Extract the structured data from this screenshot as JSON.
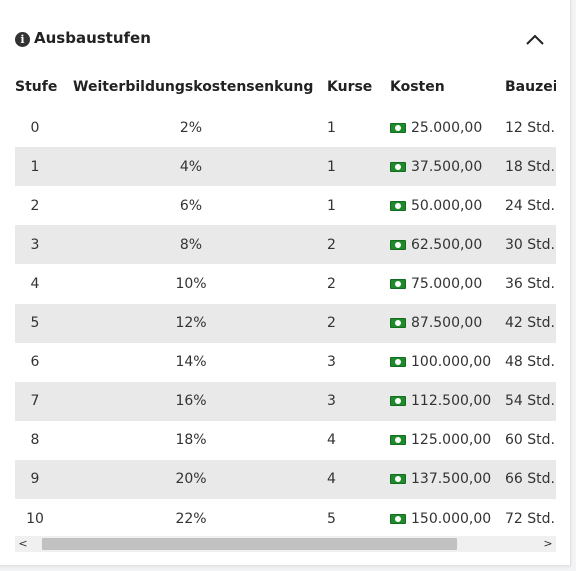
{
  "section": {
    "title": "Ausbaustufen",
    "info_icon": "i",
    "collapse_icon": "chevron-up-icon"
  },
  "table": {
    "headers": {
      "stufe": "Stufe",
      "pct": "Weiterbildungskostensenkung",
      "kurse": "Kurse",
      "kosten": "Kosten",
      "bau": "Bauzei"
    },
    "rows": [
      {
        "stufe": "0",
        "pct": "2%",
        "kurse": "1",
        "kosten": "25.000,00",
        "bau": "12 Std."
      },
      {
        "stufe": "1",
        "pct": "4%",
        "kurse": "1",
        "kosten": "37.500,00",
        "bau": "18 Std."
      },
      {
        "stufe": "2",
        "pct": "6%",
        "kurse": "1",
        "kosten": "50.000,00",
        "bau": "24 Std."
      },
      {
        "stufe": "3",
        "pct": "8%",
        "kurse": "2",
        "kosten": "62.500,00",
        "bau": "30 Std."
      },
      {
        "stufe": "4",
        "pct": "10%",
        "kurse": "2",
        "kosten": "75.000,00",
        "bau": "36 Std."
      },
      {
        "stufe": "5",
        "pct": "12%",
        "kurse": "2",
        "kosten": "87.500,00",
        "bau": "42 Std."
      },
      {
        "stufe": "6",
        "pct": "14%",
        "kurse": "3",
        "kosten": "100.000,00",
        "bau": "48 Std."
      },
      {
        "stufe": "7",
        "pct": "16%",
        "kurse": "3",
        "kosten": "112.500,00",
        "bau": "54 Std."
      },
      {
        "stufe": "8",
        "pct": "18%",
        "kurse": "4",
        "kosten": "125.000,00",
        "bau": "60 Std."
      },
      {
        "stufe": "9",
        "pct": "20%",
        "kurse": "4",
        "kosten": "137.500,00",
        "bau": "66 Std."
      },
      {
        "stufe": "10",
        "pct": "22%",
        "kurse": "5",
        "kosten": "150.000,00",
        "bau": "72 Std."
      }
    ],
    "money_icon": "money-icon",
    "money_color": "#1f8a2b",
    "stripe_color": "#e9e9e9"
  },
  "scrollbar": {
    "left_arrow": "<",
    "right_arrow": ">"
  }
}
